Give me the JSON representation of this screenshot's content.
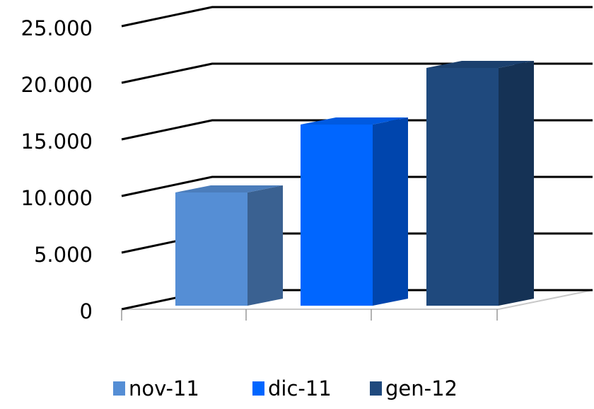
{
  "chart_data": {
    "type": "bar3d",
    "series": [
      {
        "name": "nov-11",
        "color": "#558ed5",
        "values": [
          10000
        ]
      },
      {
        "name": "dic-11",
        "color": "#0066ff",
        "values": [
          16000
        ]
      },
      {
        "name": "gen-12",
        "color": "#1f497d",
        "values": [
          21000
        ]
      }
    ],
    "ylim": [
      0,
      25000
    ],
    "yticks": [
      0,
      {
        "value": 5000,
        "label": "5.000"
      },
      {
        "value": 10000,
        "label": "10.000"
      },
      {
        "value": 15000,
        "label": "15.000"
      },
      {
        "value": 20000,
        "label": "20.000"
      },
      {
        "value": 25000,
        "label": "25.000"
      }
    ],
    "grid": true,
    "legend": "bottom"
  }
}
